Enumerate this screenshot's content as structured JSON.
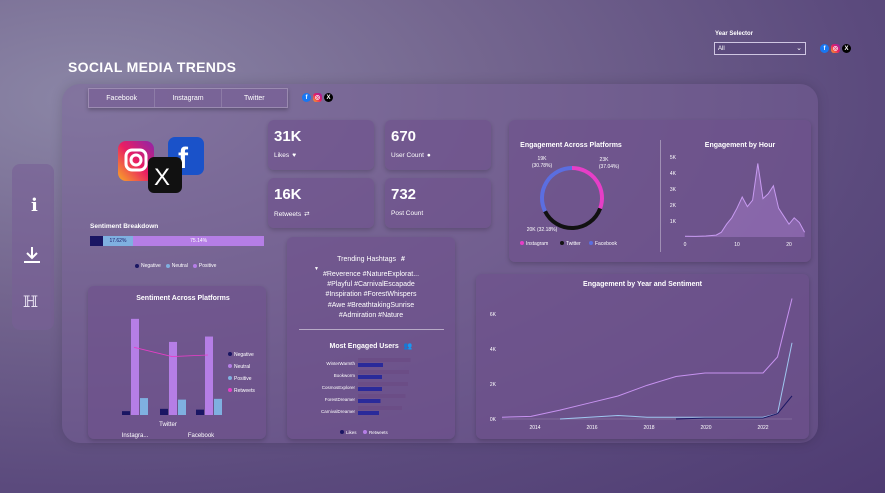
{
  "header": {
    "title": "SOCIAL MEDIA TRENDS",
    "year_selector_label": "Year Selector",
    "year_selector_value": "All"
  },
  "tabs": [
    "Facebook",
    "Instagram",
    "Twitter"
  ],
  "kpis": {
    "likes": {
      "value": "31K",
      "label": "Likes"
    },
    "user_count": {
      "value": "670",
      "label": "User Count"
    },
    "retweets": {
      "value": "16K",
      "label": "Retweets"
    },
    "post_count": {
      "value": "732",
      "label": "Post Count"
    }
  },
  "sentiment_breakdown": {
    "title": "Sentiment Breakdown",
    "segments": [
      {
        "name": "Negative",
        "pct": 7.24,
        "label": "",
        "color": "#1a1663"
      },
      {
        "name": "Neutral",
        "pct": 17.62,
        "label": "17.62%",
        "color": "#7fb0e0"
      },
      {
        "name": "Positive",
        "pct": 75.14,
        "label": "75.14%",
        "color": "#b57ee6"
      }
    ],
    "legend": [
      "Negative",
      "Neutral",
      "Positive"
    ]
  },
  "engagement_platforms": {
    "title": "Engagement Across Platforms",
    "labels": {
      "instagram": "19K",
      "instagram_pct": "(30.78%)",
      "twitter": "23K",
      "twitter_pct": "(37.04%)",
      "facebook": "20K (32.18%)"
    },
    "legend": [
      "Instagram",
      "Twitter",
      "Facebook"
    ],
    "colors": {
      "instagram": "#e63ec7",
      "twitter": "#111111",
      "facebook": "#5b6ee0"
    }
  },
  "engagement_hour": {
    "title": "Engagement by Hour",
    "y_ticks": [
      "5K",
      "4K",
      "3K",
      "2K",
      "1K"
    ],
    "x_ticks": [
      "0",
      "10",
      "20"
    ]
  },
  "hashtags": {
    "title": "Trending Hashtags",
    "symbol": "#",
    "lines": [
      "#Reverence #NatureExplorat...",
      "#Playful #CarnivalEscapade",
      "#Inspiration #ForestWhispers",
      "#Awe #BreathtakingSunrise",
      "#Admiration #Nature"
    ]
  },
  "engaged_users": {
    "title": "Most Engaged Users",
    "users": [
      "WinterWarmth",
      "Bookworm",
      "CosmosExplorer",
      "ForestDreamer",
      "CarnivalDreamer"
    ],
    "legend": [
      "Likes",
      "Retweets"
    ]
  },
  "sentiment_platforms": {
    "title": "Sentiment Across Platforms",
    "legend": [
      "Negative",
      "Neutral",
      "Positive",
      "Retweets"
    ],
    "x_labels": [
      "Instagra...",
      "Twitter",
      "Facebook"
    ]
  },
  "year_sentiment": {
    "title": "Engagement by Year and Sentiment",
    "y_ticks": [
      "6K",
      "4K",
      "2K",
      "0K"
    ],
    "x_ticks": [
      "2014",
      "2016",
      "2018",
      "2020",
      "2022"
    ]
  },
  "chart_data": [
    {
      "type": "pie",
      "title": "Engagement Across Platforms",
      "categories": [
        "Instagram",
        "Twitter",
        "Facebook"
      ],
      "values": [
        19000,
        23000,
        20000
      ]
    },
    {
      "type": "area",
      "title": "Engagement by Hour",
      "x": [
        0,
        2,
        4,
        6,
        7,
        8,
        9,
        10,
        11,
        12,
        13,
        14,
        15,
        16,
        17,
        18,
        19,
        20,
        21,
        22,
        23
      ],
      "values": [
        50,
        40,
        60,
        120,
        300,
        800,
        1200,
        1800,
        2500,
        1900,
        2300,
        4600,
        2400,
        2700,
        3200,
        1800,
        1300,
        800,
        1200,
        900,
        300
      ],
      "ylim": [
        0,
        5000
      ]
    },
    {
      "type": "bar",
      "title": "Sentiment Across Platforms",
      "categories": [
        "Instagra...",
        "Twitter",
        "Facebook"
      ],
      "series": [
        {
          "name": "Negative",
          "values": [
            5,
            8,
            7
          ]
        },
        {
          "name": "Neutral",
          "values": [
            125,
            95,
            102
          ]
        },
        {
          "name": "Positive",
          "values": [
            22,
            20,
            21
          ]
        }
      ],
      "line": {
        "name": "Retweets",
        "values": [
          88,
          76,
          78
        ]
      },
      "ylim": [
        0,
        130
      ]
    },
    {
      "type": "bar",
      "title": "Most Engaged Users",
      "categories": [
        "WinterWarmth",
        "Bookworm",
        "CosmosExplorer",
        "ForestDreamer",
        "CarnivalDreamer"
      ],
      "series": [
        {
          "name": "Likes",
          "values": [
            105,
            102,
            100,
            95,
            88
          ]
        },
        {
          "name": "Retweets",
          "values": [
            50,
            48,
            48,
            45,
            42
          ]
        }
      ]
    },
    {
      "type": "line",
      "title": "Engagement by Year and Sentiment",
      "x": [
        2013,
        2014,
        2015,
        2016,
        2017,
        2018,
        2019,
        2020,
        2021,
        2022,
        2022.5,
        2023
      ],
      "series": [
        {
          "name": "Positive",
          "values": [
            0.1,
            0.15,
            0.5,
            0.9,
            1.3,
            1.9,
            2.4,
            2.6,
            2.6,
            2.6,
            3.5,
            6.8
          ]
        },
        {
          "name": "Neutral",
          "values": [
            null,
            null,
            0,
            0.1,
            0.2,
            0.1,
            0.1,
            0.1,
            0.1,
            0.1,
            0.3,
            4.3
          ]
        },
        {
          "name": "Negative",
          "values": [
            null,
            null,
            null,
            null,
            null,
            null,
            0,
            0.05,
            0.05,
            0.05,
            0.3,
            1.3
          ]
        }
      ],
      "ylim": [
        0,
        7
      ]
    }
  ]
}
